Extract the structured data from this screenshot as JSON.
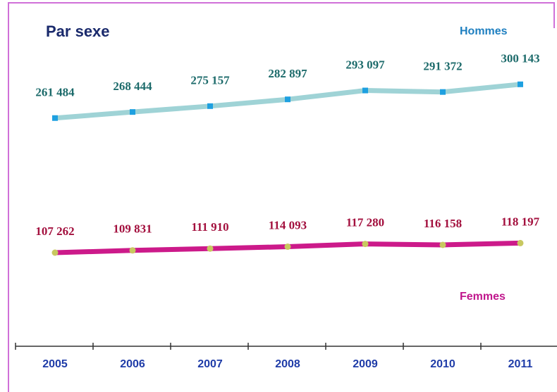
{
  "chart_data": {
    "type": "line",
    "title": "Par sexe",
    "categories": [
      "2005",
      "2006",
      "2007",
      "2008",
      "2009",
      "2010",
      "2011"
    ],
    "series": [
      {
        "name": "Hommes",
        "color": "#9fd3d6",
        "marker_color": "#1ea0e0",
        "label_color": "#1d6b6b",
        "values": [
          261484,
          268444,
          275157,
          282897,
          293097,
          291372,
          300143
        ],
        "value_labels": [
          "261 484",
          "268 444",
          "275 157",
          "282 897",
          "293 097",
          "291 372",
          "300 143"
        ]
      },
      {
        "name": "Femmes",
        "color": "#cc1a8a",
        "marker_color": "#c8c860",
        "label_color": "#a3103e",
        "values": [
          107262,
          109831,
          111910,
          114093,
          117280,
          116158,
          118197
        ],
        "value_labels": [
          "107 262",
          "109 831",
          "111 910",
          "114 093",
          "117 280",
          "116 158",
          "118 197"
        ]
      }
    ],
    "ylim": [
      0,
      350000
    ]
  }
}
